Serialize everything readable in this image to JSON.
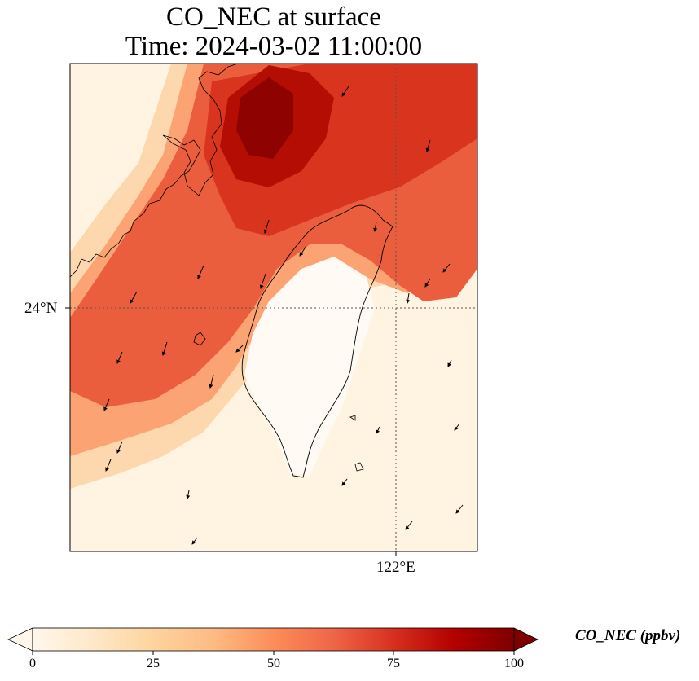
{
  "title": {
    "line1": "CO_NEC at surface",
    "line2": "Time: 2024-03-02 11:00:00"
  },
  "axes": {
    "lat_tick": "24°N",
    "lon_tick": "122°E",
    "gridlines": "dotted"
  },
  "colorbar": {
    "label": "CO_NEC (ppbv)",
    "ticks": [
      "0",
      "25",
      "50",
      "75",
      "100"
    ],
    "range": [
      0,
      100
    ],
    "colormap": "OrRd",
    "extend": "both",
    "colors": [
      "#fff7ec",
      "#fee8c8",
      "#fdd49e",
      "#fdbb84",
      "#fc8d59",
      "#ef6548",
      "#d7301f",
      "#b30000",
      "#7f0000"
    ]
  },
  "map": {
    "region": "Taiwan and southeast China coast",
    "features": [
      "coastline",
      "wind-vectors",
      "concentration-field"
    ]
  }
}
